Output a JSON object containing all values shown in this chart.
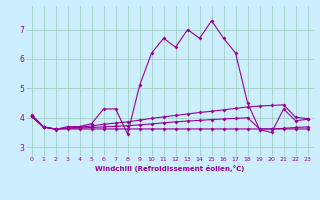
{
  "xlabel": "Windchill (Refroidissement éolien,°C)",
  "ylabel": "",
  "background_color": "#cceeff",
  "line_color": "#990099",
  "grid_color": "#99ccbb",
  "x_ticks": [
    0,
    1,
    2,
    3,
    4,
    5,
    6,
    7,
    8,
    9,
    10,
    11,
    12,
    13,
    14,
    15,
    16,
    17,
    18,
    19,
    20,
    21,
    22,
    23
  ],
  "y_ticks": [
    3,
    4,
    5,
    6,
    7
  ],
  "xlim": [
    -0.5,
    23.5
  ],
  "ylim": [
    2.7,
    7.8
  ],
  "series": [
    [
      4.1,
      3.7,
      3.6,
      3.7,
      3.7,
      3.8,
      4.3,
      4.3,
      3.45,
      5.1,
      6.2,
      6.7,
      6.4,
      7.0,
      6.7,
      7.3,
      6.7,
      6.2,
      4.5,
      3.6,
      3.5,
      4.3,
      3.9,
      3.95
    ],
    [
      4.05,
      3.68,
      3.62,
      3.65,
      3.68,
      3.72,
      3.78,
      3.82,
      3.86,
      3.92,
      3.98,
      4.03,
      4.08,
      4.13,
      4.18,
      4.22,
      4.27,
      4.32,
      4.37,
      4.4,
      4.42,
      4.44,
      4.02,
      3.97
    ],
    [
      4.05,
      3.68,
      3.62,
      3.64,
      3.65,
      3.67,
      3.69,
      3.71,
      3.73,
      3.76,
      3.79,
      3.83,
      3.86,
      3.89,
      3.91,
      3.94,
      3.96,
      3.98,
      4.0,
      3.62,
      3.62,
      3.64,
      3.67,
      3.69
    ],
    [
      4.05,
      3.68,
      3.62,
      3.62,
      3.62,
      3.62,
      3.62,
      3.62,
      3.62,
      3.62,
      3.62,
      3.62,
      3.62,
      3.62,
      3.62,
      3.62,
      3.62,
      3.62,
      3.62,
      3.62,
      3.62,
      3.62,
      3.62,
      3.62
    ]
  ]
}
